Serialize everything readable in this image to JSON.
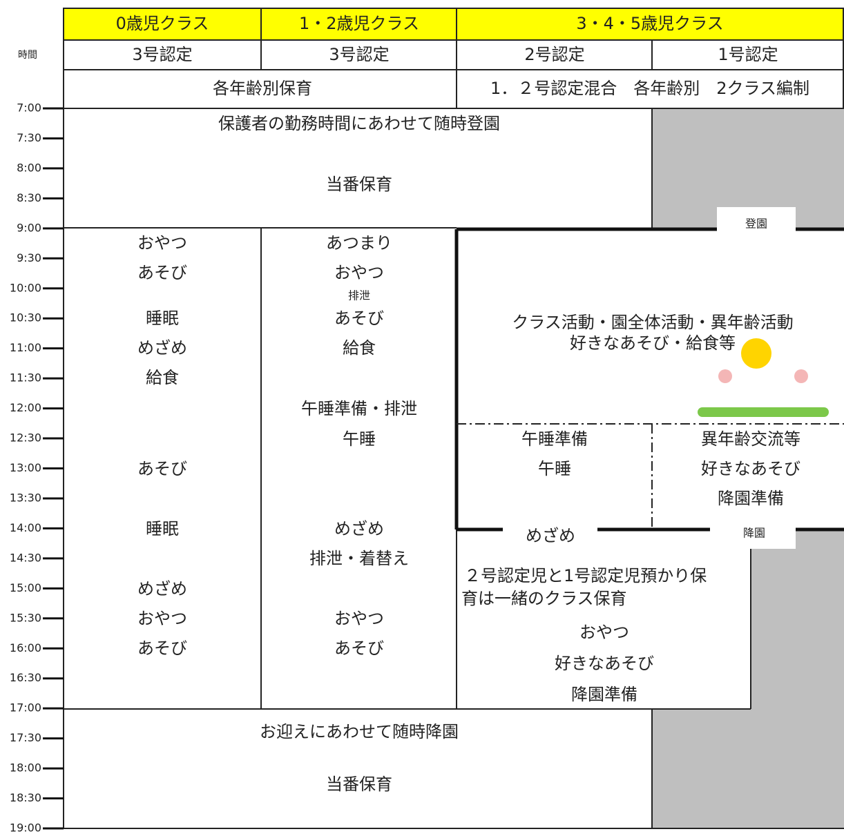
{
  "header": {
    "time_label": "時間",
    "classes": [
      "0歳児クラス",
      "1・2歳児クラス",
      "3・4・5歳児クラス"
    ],
    "certifications": [
      "3号認定",
      "3号認定",
      "2号認定",
      "1号認定"
    ],
    "styles": [
      "各年齢別保育",
      "1．２号認定混合　各年齢別　2クラス編制"
    ]
  },
  "times": [
    "7:00",
    "7:30",
    "8:00",
    "8:30",
    "9:00",
    "9:30",
    "10:00",
    "10:30",
    "11:00",
    "11:30",
    "12:00",
    "12:30",
    "13:00",
    "13:30",
    "14:00",
    "14:30",
    "15:00",
    "15:30",
    "16:00",
    "16:30",
    "17:00",
    "17:30",
    "18:00",
    "18:30",
    "19:00"
  ],
  "morning": {
    "arrival": "保護者の勤務時間にあわせて随時登園",
    "care": "当番保育"
  },
  "age0": [
    "おやつ",
    "あそび",
    "睡眠",
    "めざめ",
    "給食",
    "あそび",
    "睡眠",
    "めざめ",
    "おやつ",
    "あそび"
  ],
  "age12": [
    "あつまり",
    "おやつ",
    "排泄",
    "あそび",
    "給食",
    "午睡準備・排泄",
    "午睡",
    "めざめ",
    "排泄・着替え",
    "おやつ",
    "あそび"
  ],
  "age345": {
    "arrival": "登園",
    "activity": [
      "クラス活動・園全体活動・異年齢活動",
      "好きなあそび・給食等"
    ],
    "type2": [
      "午睡準備",
      "午睡",
      "めざめ"
    ],
    "type1": [
      "異年齢交流等",
      "好きなあそび",
      "降園準備",
      "降園"
    ],
    "afternoon": [
      "２号認定児と1号認定児預かり保",
      "育は一緒のクラス保育",
      "おやつ",
      "好きなあそび",
      "降園準備"
    ]
  },
  "evening": {
    "departure": "お迎えにあわせて随時降園",
    "care": "当番保育"
  }
}
